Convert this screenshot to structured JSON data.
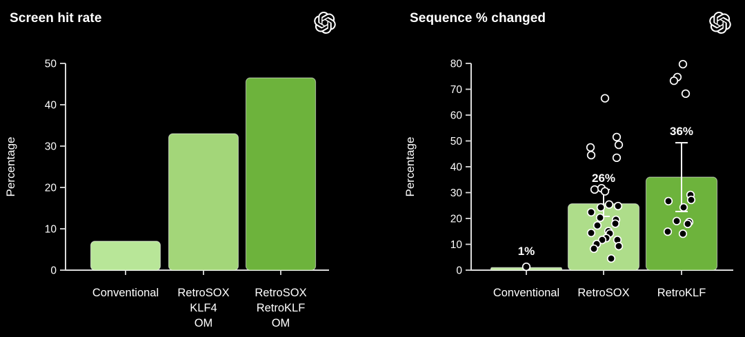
{
  "app": {
    "background": "#000000",
    "text_color": "#ffffff",
    "axis_color": "#dcdcdc",
    "accent_greens": [
      "#b8e698",
      "#a3d679",
      "#6db33c"
    ]
  },
  "panels": [
    {
      "title": "Screen hit rate",
      "logo": "openai-logo"
    },
    {
      "title": "Sequence % changed",
      "logo": "openai-logo"
    }
  ],
  "chart_data": [
    {
      "type": "bar",
      "title": "Screen hit rate",
      "xlabel": "",
      "ylabel": "Percentage",
      "ylim": [
        0,
        50
      ],
      "yticks": [
        0,
        10,
        20,
        30,
        40,
        50
      ],
      "grid": false,
      "legend": null,
      "categories": [
        "Conventional",
        "RetroSOX\nKLF4\nOM",
        "RetroSOX\nRetroKLF\nOM"
      ],
      "values": [
        7,
        33,
        46.5
      ],
      "bar_colors": [
        "#b8e698",
        "#a3d679",
        "#6db33c"
      ]
    },
    {
      "type": "bar",
      "title": "Sequence % changed",
      "xlabel": "",
      "ylabel": "Percentage",
      "ylim": [
        0,
        80
      ],
      "yticks": [
        0,
        10,
        20,
        30,
        40,
        50,
        60,
        70,
        80
      ],
      "grid": false,
      "legend": null,
      "categories": [
        "Conventional",
        "RetroSOX",
        "RetroKLF"
      ],
      "values": [
        1,
        25.7,
        36
      ],
      "value_labels": [
        "1%",
        "26%",
        "36%"
      ],
      "bar_colors": [
        "#bfe6a1",
        "#aedd8a",
        "#6db33c"
      ],
      "error_bars": [
        null,
        {
          "low": 20.8,
          "high": 31.2
        },
        {
          "low": 22.7,
          "high": 49.3
        }
      ],
      "marker_style": {
        "fill": "#000000",
        "stroke": "#ffffff"
      },
      "scatter_points": [
        {
          "category": "Conventional",
          "points": [
            [
              0,
              1.3
            ]
          ]
        },
        {
          "category": "RetroSOX",
          "points": [
            [
              2,
              66.5
            ],
            [
              19,
              51.5
            ],
            [
              22,
              48.5
            ],
            [
              -19,
              47.5
            ],
            [
              -18,
              44.5
            ],
            [
              19,
              43.5
            ],
            [
              -13,
              31.2
            ],
            [
              -3,
              31.7
            ],
            [
              2,
              30.5
            ],
            [
              8,
              25.4
            ],
            [
              21,
              24.8
            ],
            [
              -4,
              24.3
            ],
            [
              -18,
              22.4
            ],
            [
              -5,
              20.3
            ],
            [
              18,
              19.5
            ],
            [
              17,
              18.0
            ],
            [
              -9,
              17.3
            ],
            [
              7,
              15.1
            ],
            [
              9,
              14.2
            ],
            [
              -18,
              14.4
            ],
            [
              4,
              12.4
            ],
            [
              -2,
              11.7
            ],
            [
              20,
              11.7
            ],
            [
              -10,
              10.1
            ],
            [
              22,
              9.3
            ],
            [
              -14,
              8.3
            ],
            [
              11,
              4.5
            ]
          ]
        },
        {
          "category": "RetroKLF",
          "points": [
            [
              2,
              79.7
            ],
            [
              -6,
              74.7
            ],
            [
              -11,
              73.3
            ],
            [
              6,
              68.3
            ],
            [
              13,
              29.1
            ],
            [
              14,
              27.2
            ],
            [
              -19,
              26.7
            ],
            [
              3,
              24.3
            ],
            [
              -7,
              19.0
            ],
            [
              11,
              18.6
            ],
            [
              9,
              17.9
            ],
            [
              -20,
              14.9
            ],
            [
              2,
              14.1
            ]
          ]
        }
      ]
    }
  ]
}
